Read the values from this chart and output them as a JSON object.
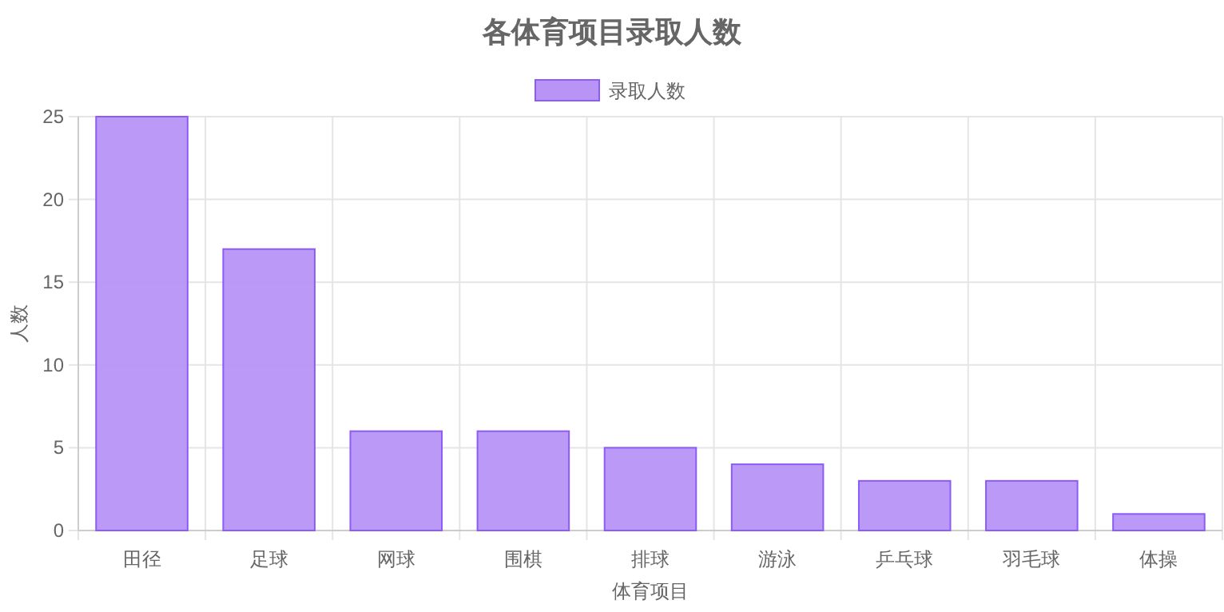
{
  "chart_data": {
    "type": "bar",
    "title": "各体育项目录取人数",
    "xlabel": "体育项目",
    "ylabel": "人数",
    "categories": [
      "田径",
      "足球",
      "网球",
      "围棋",
      "排球",
      "游泳",
      "乒乓球",
      "羽毛球",
      "体操"
    ],
    "series": [
      {
        "name": "录取人数",
        "color": "#b794f6",
        "values": [
          25,
          17,
          6,
          6,
          5,
          4,
          3,
          3,
          1
        ]
      }
    ],
    "ylim": [
      0,
      25
    ],
    "yticks": [
      0,
      5,
      10,
      15,
      20,
      25
    ],
    "grid": true,
    "legend": "top"
  }
}
